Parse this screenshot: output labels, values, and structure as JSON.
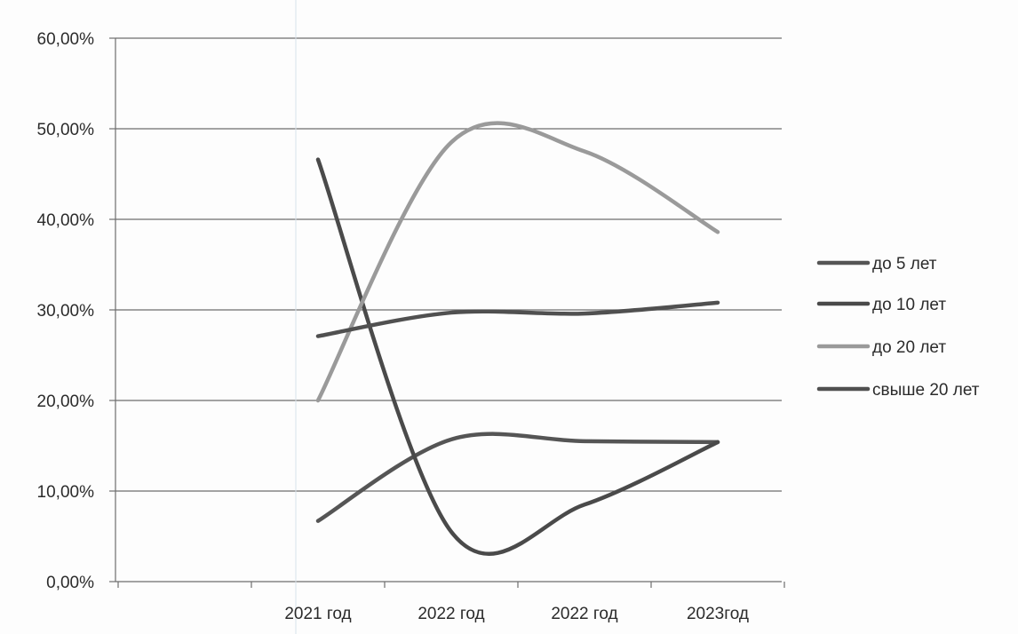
{
  "chart_data": {
    "type": "line",
    "title": "",
    "xlabel": "",
    "ylabel": "",
    "categories": [
      "2021 год",
      "2022 год",
      "2022 год",
      "2023год"
    ],
    "ylim": [
      0,
      0.6
    ],
    "yticks": [
      "0,00%",
      "10,00%",
      "20,00%",
      "30,00%",
      "40,00%",
      "50,00%",
      "60,00%"
    ],
    "grid": "horizontal",
    "legend_position": "right",
    "series": [
      {
        "name": "до 5 лет",
        "values": [
          0.067,
          0.157,
          0.155,
          0.154
        ],
        "color": "#555555"
      },
      {
        "name": "до 10 лет",
        "values": [
          0.466,
          0.055,
          0.085,
          0.154
        ],
        "color": "#4a4a4a"
      },
      {
        "name": "до 20 лет",
        "values": [
          0.2,
          0.485,
          0.475,
          0.386
        ],
        "color": "#9a9a9a"
      },
      {
        "name": "свыше 20 лет",
        "values": [
          0.271,
          0.297,
          0.296,
          0.308
        ],
        "color": "#505050"
      }
    ]
  }
}
